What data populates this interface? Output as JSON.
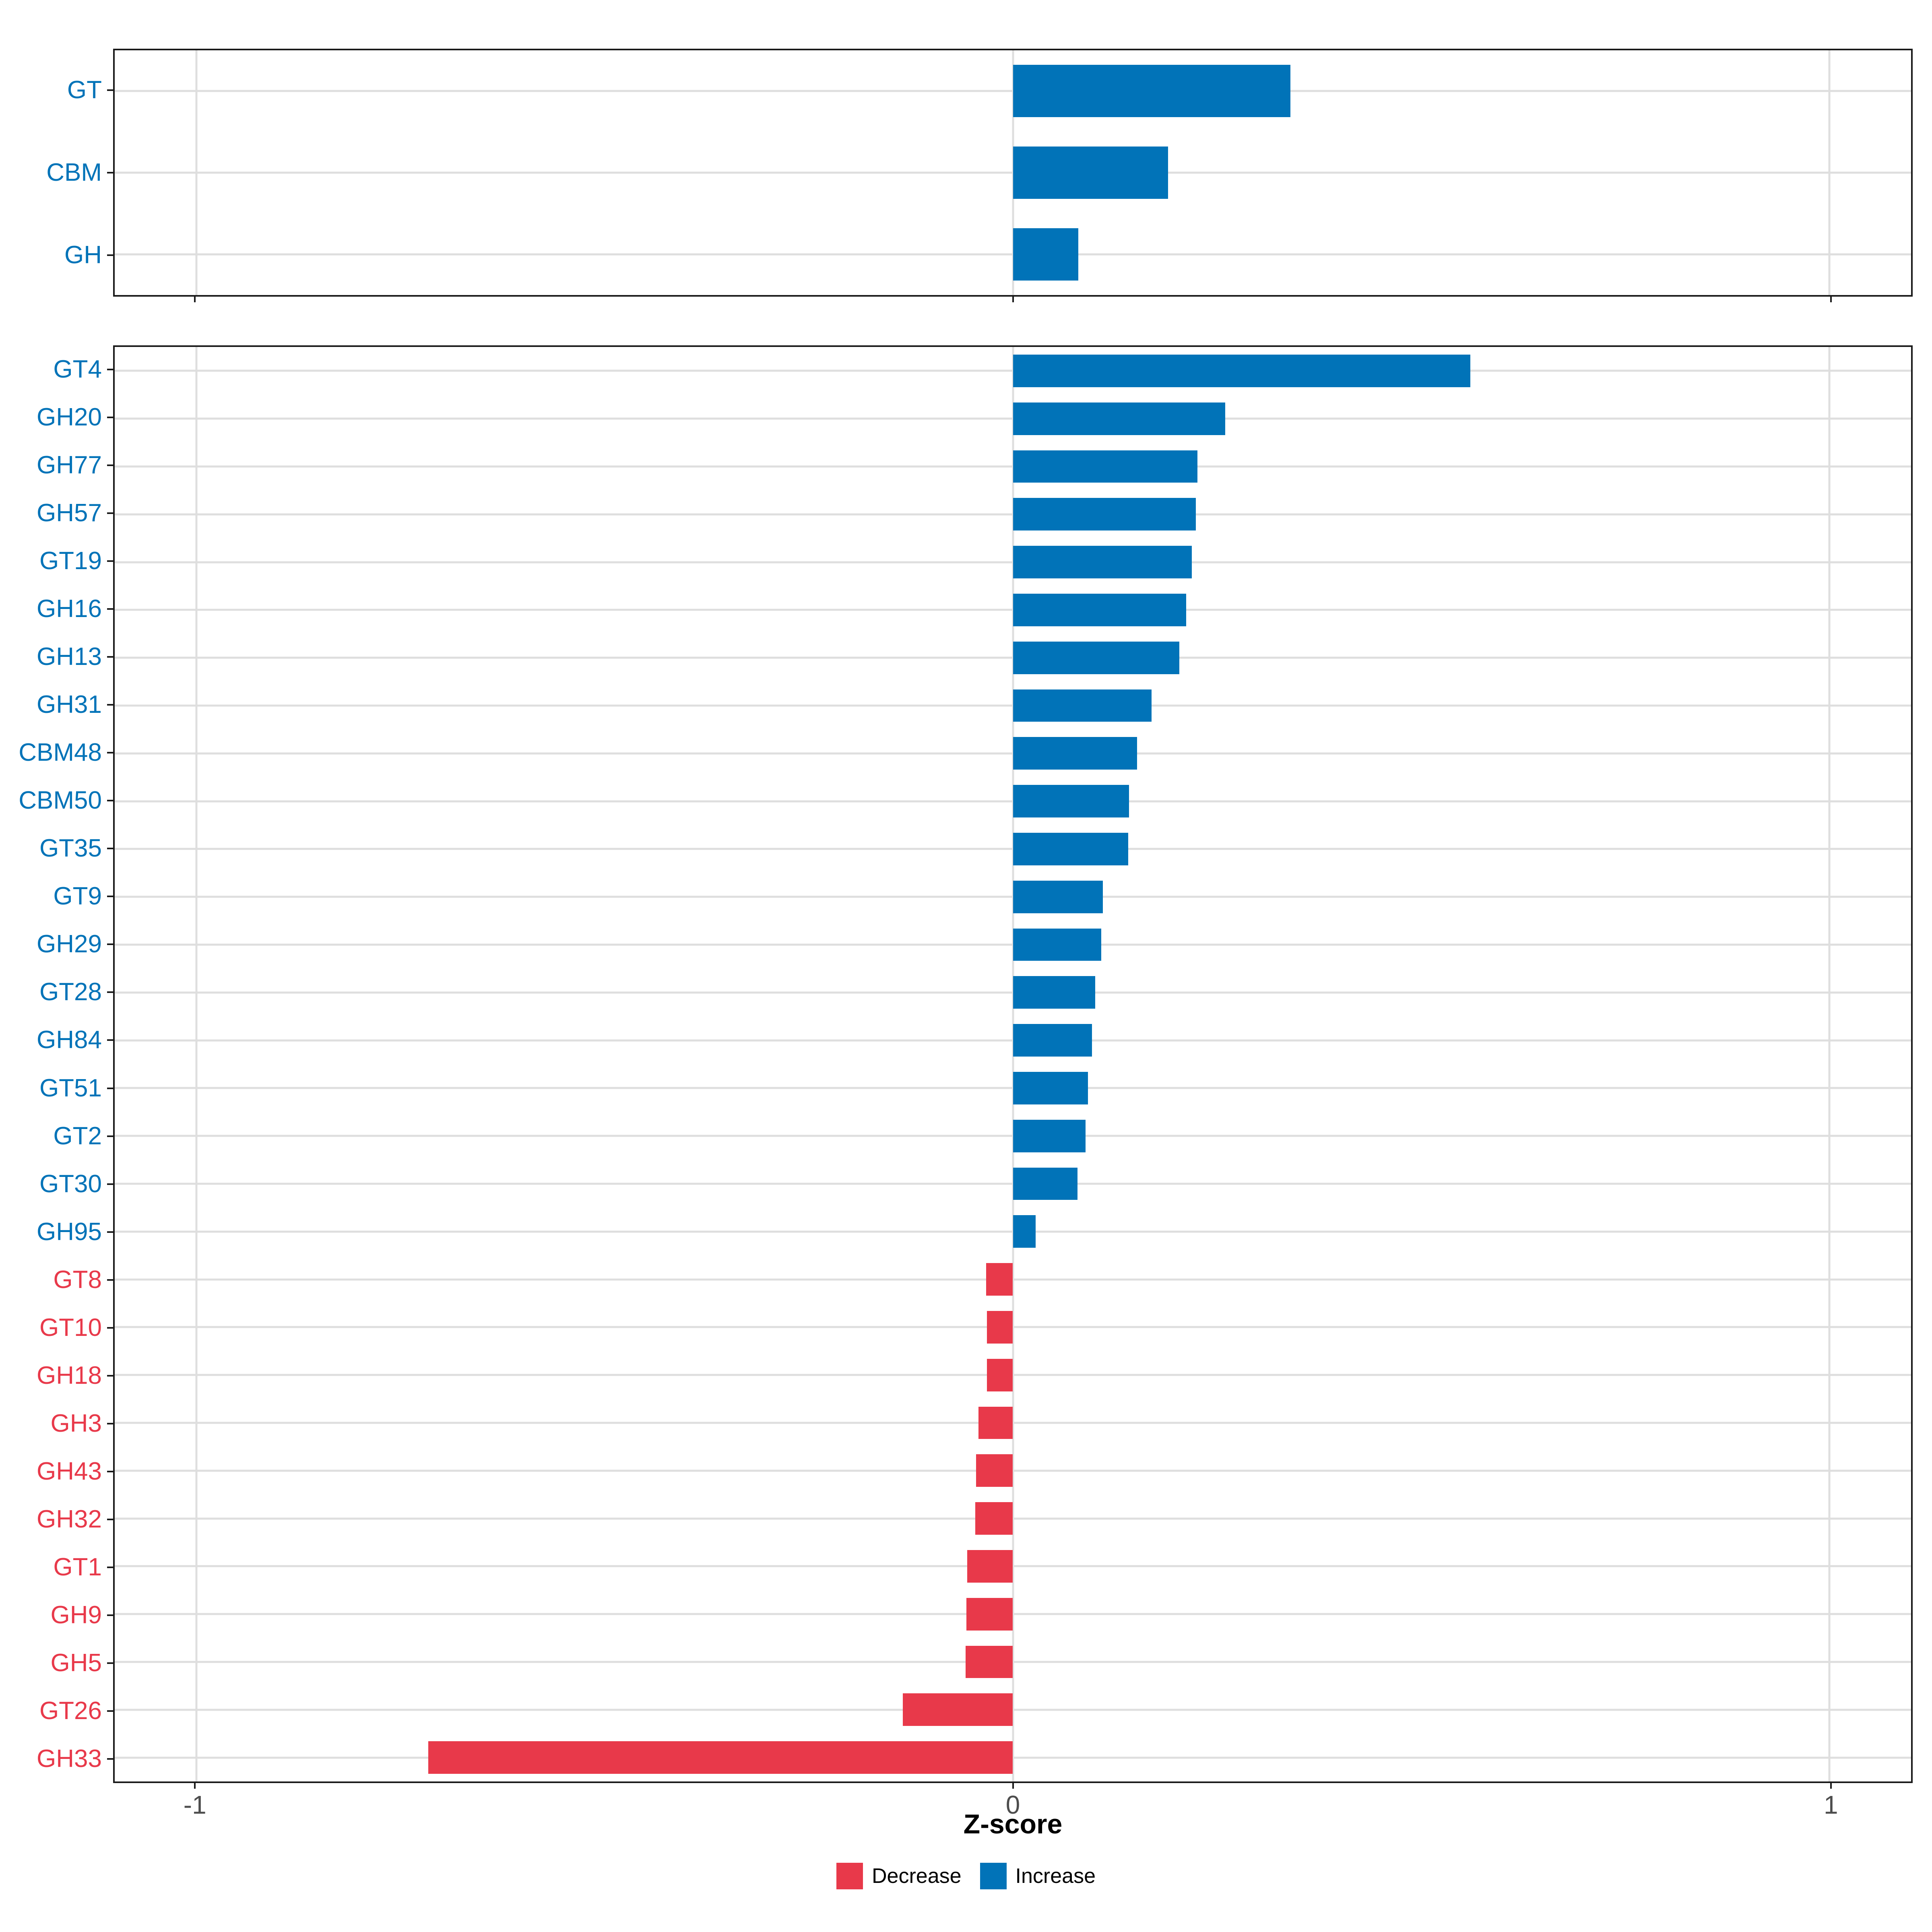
{
  "chart_data": [
    {
      "type": "bar",
      "orientation": "horizontal",
      "panel": "top",
      "title": "",
      "categories": [
        "GT",
        "CBM",
        "GH"
      ],
      "values": [
        0.34,
        0.19,
        0.08
      ],
      "xlim": [
        -1.1,
        1.1
      ],
      "xticks": [
        -1,
        0,
        1
      ],
      "grid": true,
      "legend_position": "none"
    },
    {
      "type": "bar",
      "orientation": "horizontal",
      "panel": "bottom",
      "title": "",
      "categories": [
        "GT4",
        "GH20",
        "GH77",
        "GH57",
        "GT19",
        "GH16",
        "GH13",
        "GH31",
        "CBM48",
        "CBM50",
        "GT35",
        "GT9",
        "GH29",
        "GT28",
        "GH84",
        "GT51",
        "GT2",
        "GT30",
        "GH95",
        "GT8",
        "GT10",
        "GH18",
        "GH3",
        "GH43",
        "GH32",
        "GT1",
        "GH9",
        "GH5",
        "GT26",
        "GH33"
      ],
      "values": [
        0.56,
        0.26,
        0.226,
        0.224,
        0.219,
        0.212,
        0.204,
        0.17,
        0.152,
        0.142,
        0.141,
        0.11,
        0.108,
        0.101,
        0.097,
        0.092,
        0.089,
        0.079,
        0.028,
        -0.033,
        -0.032,
        -0.032,
        -0.042,
        -0.045,
        -0.046,
        -0.056,
        -0.057,
        -0.058,
        -0.135,
        -0.716
      ],
      "xlim": [
        -1.1,
        1.1
      ],
      "xticks": [
        -1,
        0,
        1
      ],
      "grid": true,
      "legend_position": "bottom"
    }
  ],
  "axis": {
    "xlabel": "Z-score",
    "tick_values": [
      -1,
      0,
      1
    ],
    "tick_labels": [
      "-1",
      "0",
      "1"
    ]
  },
  "legend": {
    "items": [
      {
        "label": "Decrease",
        "color": "#E8394A"
      },
      {
        "label": "Increase",
        "color": "#0173B8"
      }
    ]
  },
  "colors": {
    "increase": "#0173B8",
    "decrease": "#E8394A",
    "grid": "#DEDEDE",
    "panel_border": "#1a1a1a",
    "tick_label": "#4d4d4d",
    "background": "#ffffff"
  }
}
